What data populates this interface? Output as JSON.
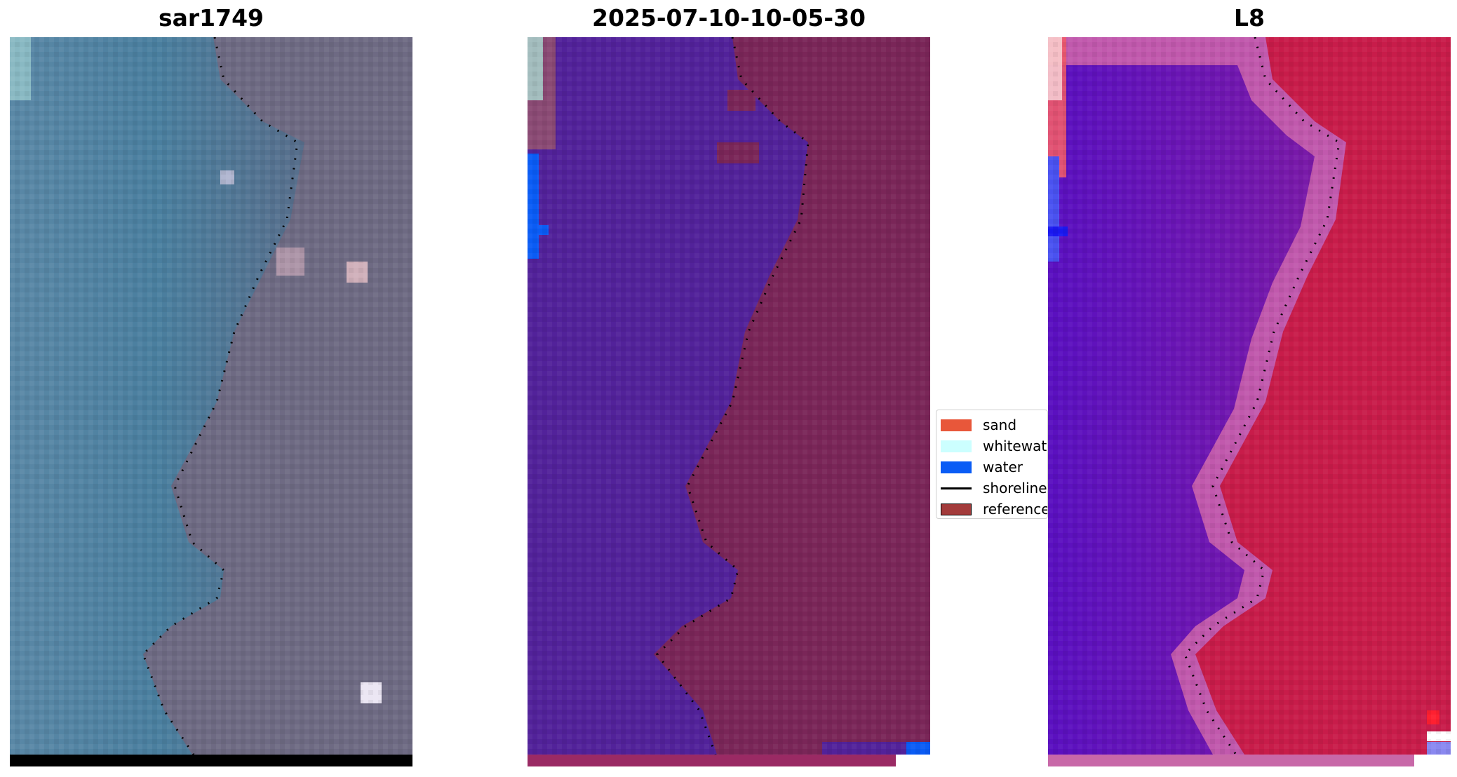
{
  "panels": [
    {
      "title": "sar1749"
    },
    {
      "title": "2025-07-10-10-05-30"
    },
    {
      "title": "L8"
    }
  ],
  "legend": {
    "items": [
      {
        "label": "sand",
        "color": "#e8573a"
      },
      {
        "label": "whitewater",
        "color": "#ccffff"
      },
      {
        "label": "water",
        "color": "#0a5cf5"
      },
      {
        "label": "shoreline",
        "color": "#000000"
      },
      {
        "label": "reference shoreline",
        "color": "#a33b3b"
      }
    ]
  },
  "colors": {
    "water_class": "#52229a",
    "land_classified": "#7a2658",
    "sea_rgb": "#4f86a8",
    "land_rgb": "#6d6a82",
    "sea_ndwi": "#6a16b8",
    "land_ndwi": "#c81c4a"
  }
}
